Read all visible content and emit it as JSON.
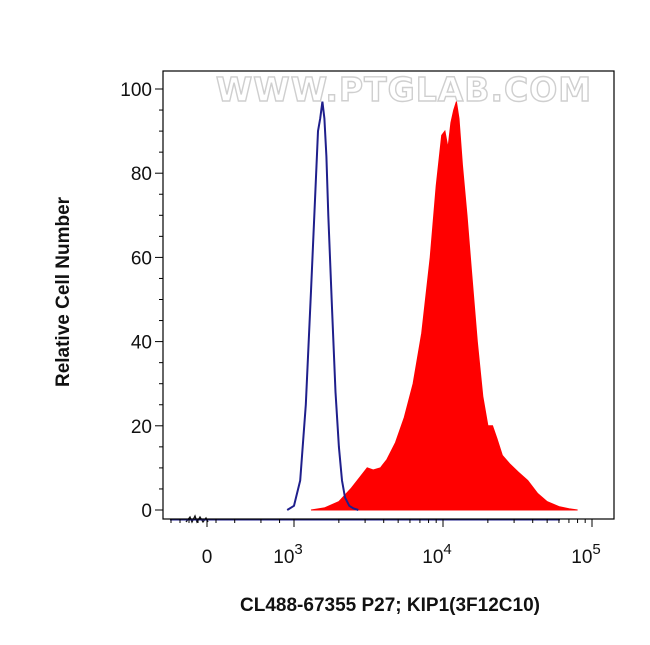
{
  "chart_data": {
    "type": "area",
    "watermark": "WWW.PTGLAB.COM",
    "xlabel": "CL488-67355 P27; KIP1(3F12C10)",
    "ylabel": "Relative Cell Number",
    "xscale": "biexponential",
    "ylim": [
      0,
      100
    ],
    "y_ticks": [
      {
        "value": 0,
        "label": "0"
      },
      {
        "value": 20,
        "label": "20"
      },
      {
        "value": 40,
        "label": "40"
      },
      {
        "value": 60,
        "label": "60"
      },
      {
        "value": 80,
        "label": "80"
      },
      {
        "value": 100,
        "label": "100"
      }
    ],
    "x_ticks": [
      {
        "value": 0,
        "base": "0",
        "exp": ""
      },
      {
        "value": 1000,
        "base": "10",
        "exp": "3"
      },
      {
        "value": 10000,
        "base": "10",
        "exp": "4"
      },
      {
        "value": 100000,
        "base": "10",
        "exp": "5"
      }
    ],
    "series": [
      {
        "style": "outline",
        "color": "#1f1f8c",
        "x": [
          900,
          1000,
          1100,
          1200,
          1300,
          1400,
          1450,
          1500,
          1550,
          1600,
          1650,
          1700,
          1800,
          1900,
          2000,
          2100,
          2200,
          2350,
          2500,
          2700
        ],
        "y": [
          0,
          1,
          7,
          25,
          52,
          78,
          90,
          93,
          97,
          93,
          84,
          70,
          48,
          28,
          15,
          7,
          3,
          1,
          0.4,
          0
        ]
      },
      {
        "style": "filled",
        "color": "#ff0000",
        "x": [
          1300,
          1600,
          2000,
          2400,
          2800,
          3100,
          3400,
          3800,
          4200,
          4800,
          5500,
          6300,
          7200,
          8200,
          9000,
          9800,
          10300,
          10800,
          11300,
          11800,
          12300,
          12800,
          13500,
          14500,
          15500,
          17000,
          18500,
          20000,
          21500,
          23000,
          25000,
          28000,
          32000,
          37000,
          43000,
          50000,
          60000,
          70000,
          80000
        ],
        "y": [
          0,
          0.5,
          2,
          5,
          8,
          10,
          9.5,
          10,
          12,
          16,
          22,
          30,
          42,
          60,
          77,
          89,
          90,
          86,
          92,
          95,
          97,
          93,
          82,
          70,
          57,
          40,
          27,
          20,
          20,
          17,
          13,
          11,
          9,
          7,
          4,
          2,
          0.8,
          0.3,
          0
        ]
      }
    ]
  }
}
